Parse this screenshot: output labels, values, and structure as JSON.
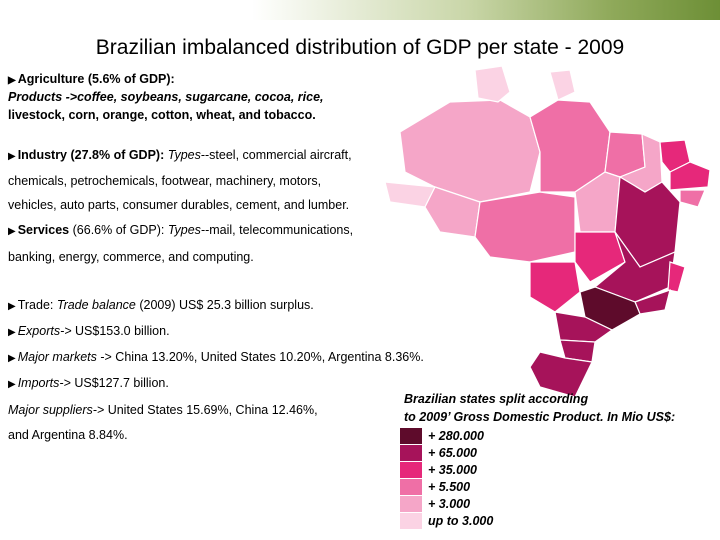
{
  "title": "Brazilian imbalanced distribution of GDP per state - 2009",
  "sections": {
    "agriculture": {
      "heading": "Agriculture (5.6% of GDP):",
      "line1": "Products ->coffee, soybeans, sugarcane, cocoa, rice,",
      "line2": "livestock, corn, orange, cotton, wheat, and tobacco."
    },
    "industry": {
      "heading": "Industry (27.8% of GDP):",
      "types_label": "Types",
      "line1_rest": "--steel, commercial aircraft,",
      "line2": "chemicals, petrochemicals, footwear, machinery, motors,",
      "line3": "vehicles, auto parts, consumer durables, cement, and lumber."
    },
    "services": {
      "heading": "Services",
      "percent": "(66.6% of GDP):",
      "types_label": "Types",
      "line1_rest": "--mail, telecommunications,",
      "line2": "banking, energy, commerce, and computing."
    },
    "trade": {
      "label": "Trade:",
      "italic": "Trade balance",
      "rest": "(2009) US$ 25.3 billion surplus."
    },
    "exports": {
      "label": "Exports->",
      "rest": "US$153.0 billion."
    },
    "major_markets": {
      "label": "Major markets",
      "rest": "-> China 13.20%, United States 10.20%, Argentina 8.36%."
    },
    "imports": {
      "label": "Imports->",
      "rest": "US$127.7 billion."
    },
    "suppliers": {
      "label": "Major suppliers->",
      "line1_rest": "United States 15.69%, China 12.46%,",
      "line2": "and Argentina 8.84%."
    }
  },
  "legend": {
    "caption_line1": "Brazilian states split according",
    "caption_line2": "to 2009’ Gross Domestic Product. In Mio US$:",
    "items": [
      {
        "label": "+ 280.000",
        "color": "#5e0b2b"
      },
      {
        "label": "+ 65.000",
        "color": "#a6135a"
      },
      {
        "label": "+ 35.000",
        "color": "#e6287a"
      },
      {
        "label": "+ 5.500",
        "color": "#ef6fa6"
      },
      {
        "label": "+ 3.000",
        "color": "#f5a6c8"
      },
      {
        "label": "up to 3.000",
        "color": "#fbd3e4"
      }
    ]
  },
  "bullet_icon": "arrow-right-icon"
}
